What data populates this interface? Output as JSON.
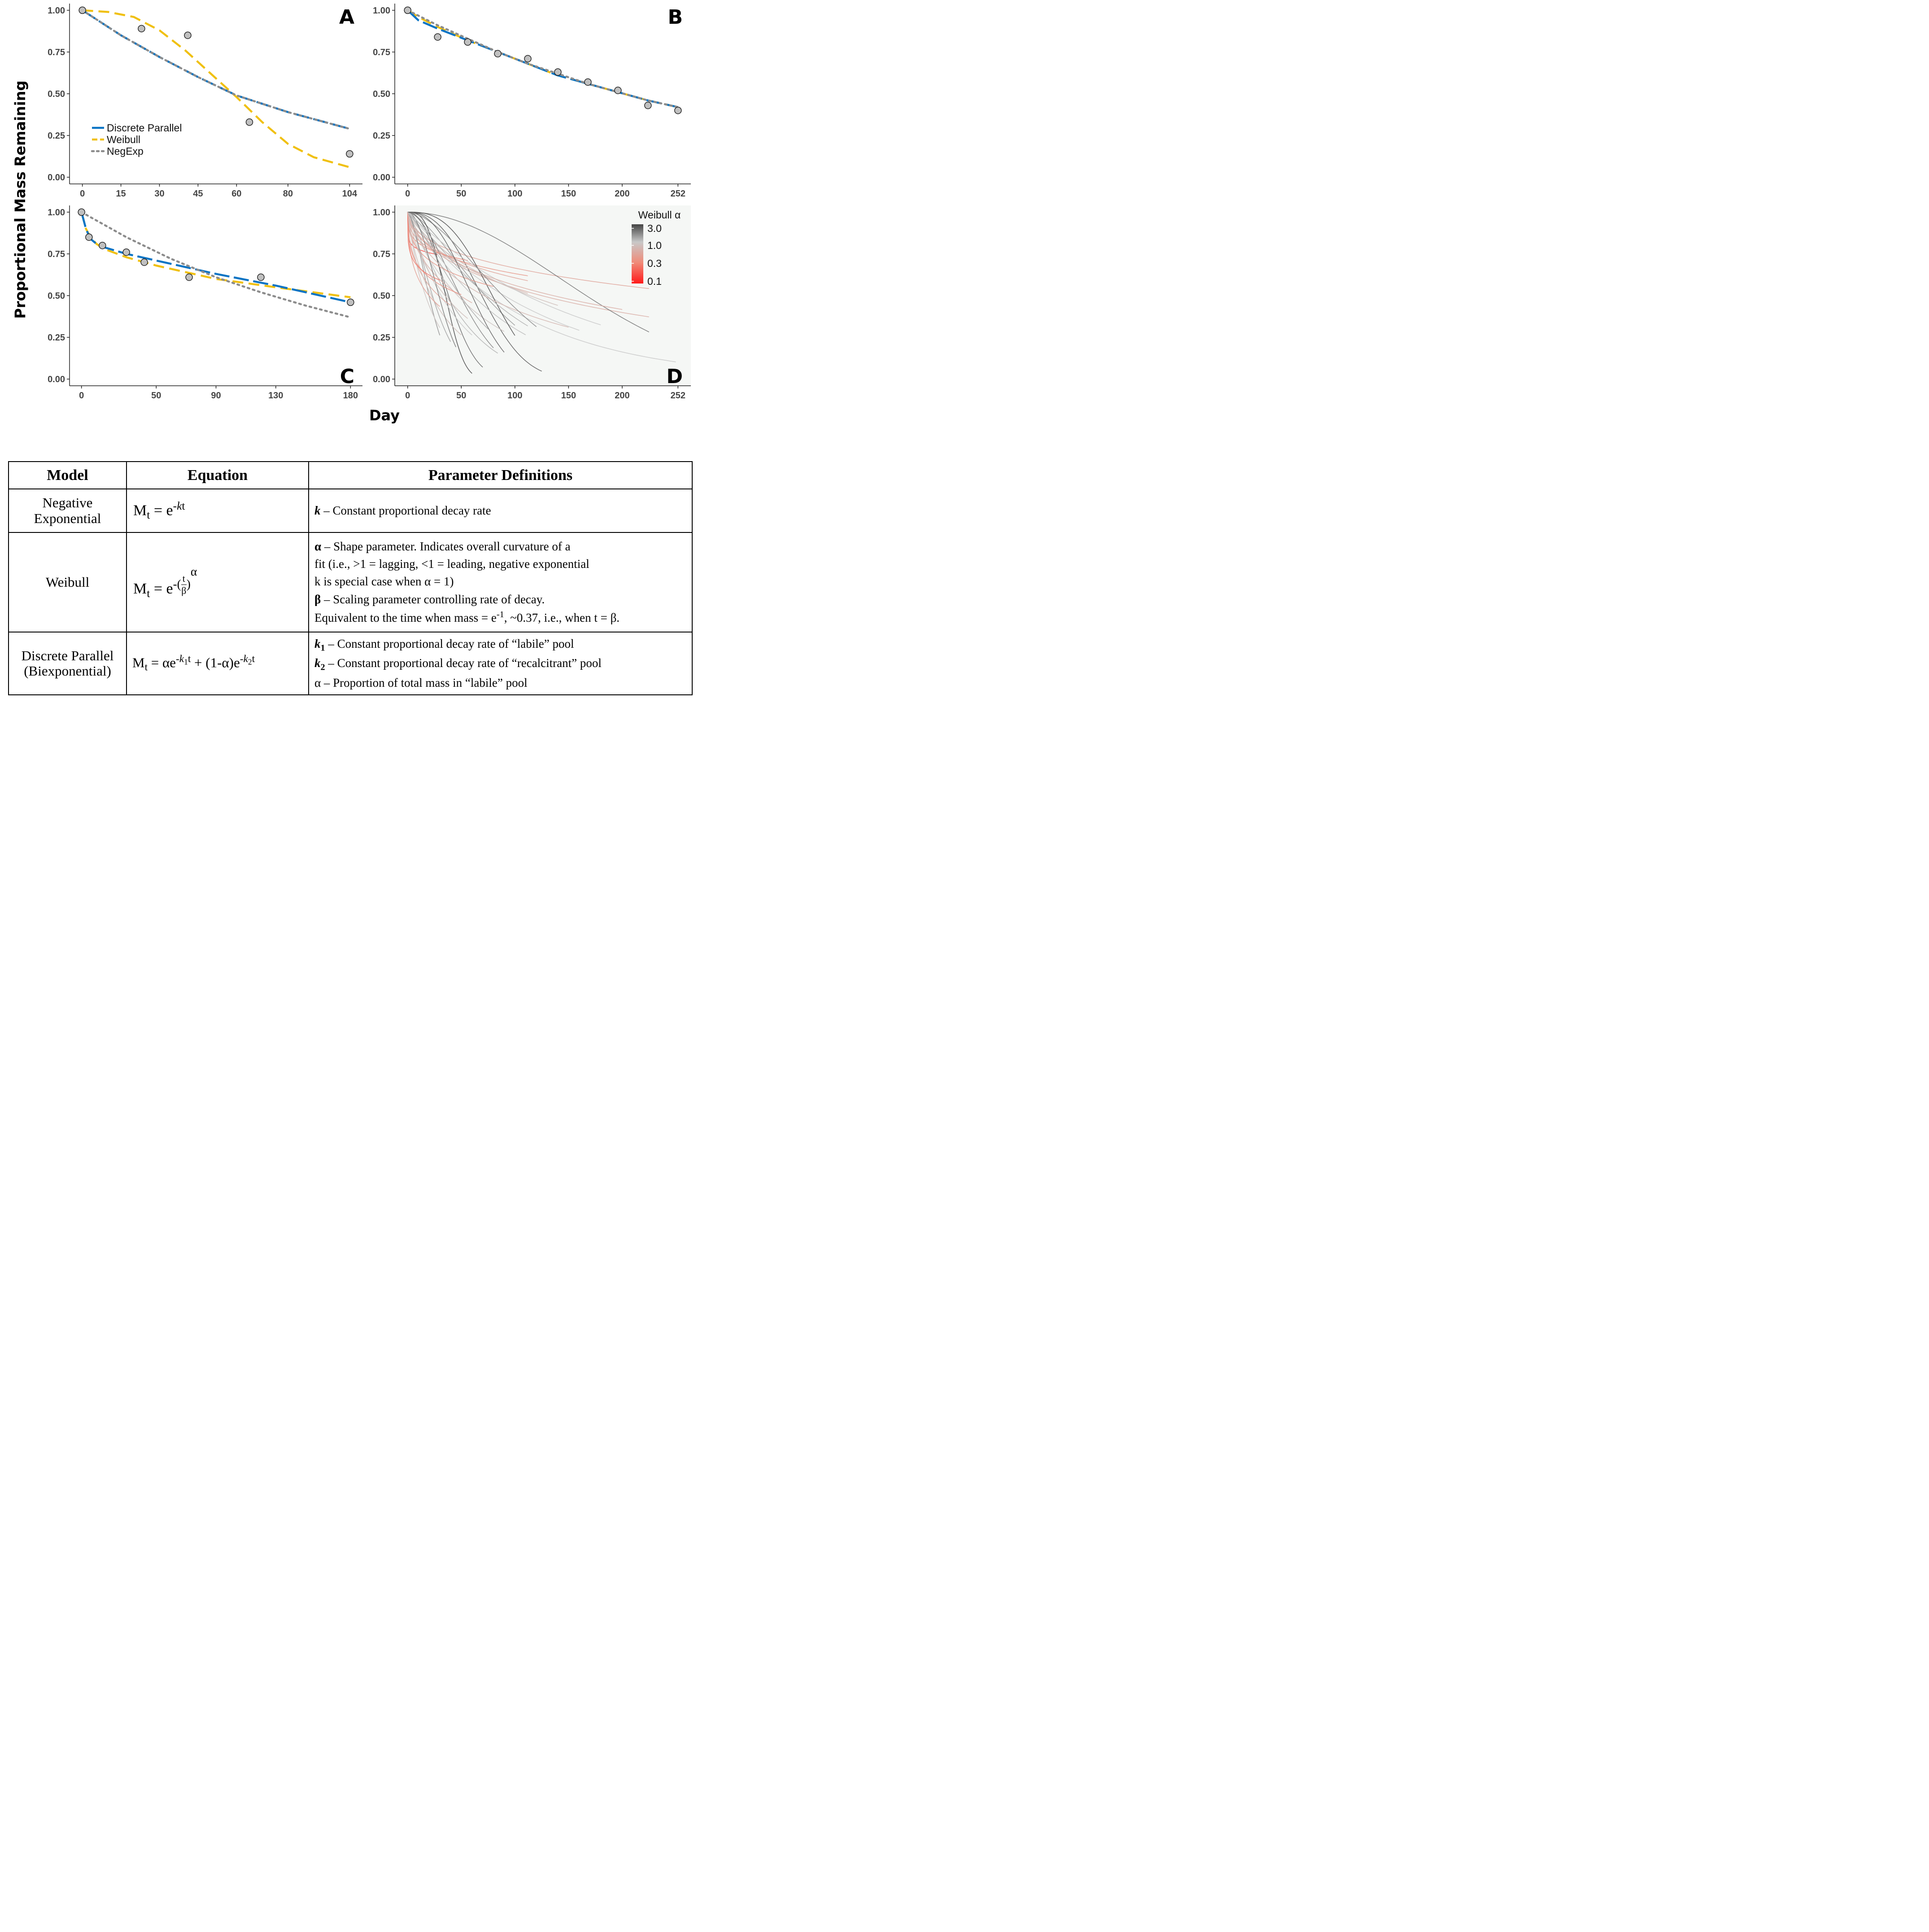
{
  "figure": {
    "y_axis_title": "Proportional Mass Remaining",
    "x_axis_title": "Day",
    "colors": {
      "discrete_parallel": "#0a74c4",
      "weibull": "#f0c010",
      "negexp": "#8c8c8c",
      "points_fill": "#c0c0c0",
      "panel_d_bg": "#f5f7f5"
    }
  },
  "chart_data": [
    {
      "type": "line",
      "panel": "A",
      "x_ticks": [
        0,
        15,
        30,
        45,
        60,
        80,
        104
      ],
      "y_ticks": [
        0,
        0.25,
        0.5,
        0.75,
        1
      ],
      "y_tick_labels": [
        "0.00",
        "0.25",
        "0.50",
        "0.75",
        "1.00"
      ],
      "xlim": [
        -5,
        109
      ],
      "ylim": [
        -0.04,
        1.04
      ],
      "points": {
        "x": [
          0,
          23,
          41,
          65,
          104
        ],
        "y": [
          1.0,
          0.89,
          0.85,
          0.33,
          0.14
        ]
      },
      "series": [
        {
          "name": "Discrete Parallel",
          "x": [
            0,
            15,
            30,
            45,
            60,
            80,
            104
          ],
          "y": [
            1.0,
            0.85,
            0.72,
            0.6,
            0.49,
            0.39,
            0.29
          ]
        },
        {
          "name": "Weibull",
          "x": [
            0,
            10,
            20,
            30,
            40,
            50,
            60,
            70,
            80,
            90,
            104
          ],
          "y": [
            1.0,
            0.99,
            0.96,
            0.88,
            0.76,
            0.62,
            0.48,
            0.33,
            0.2,
            0.12,
            0.06
          ]
        },
        {
          "name": "NegExp",
          "x": [
            0,
            15,
            30,
            45,
            60,
            80,
            104
          ],
          "y": [
            1.0,
            0.85,
            0.72,
            0.6,
            0.49,
            0.39,
            0.29
          ]
        }
      ],
      "legend": [
        "Discrete Parallel",
        "Weibull",
        "NegExp"
      ],
      "legend_position": "bottom-left"
    },
    {
      "type": "line",
      "panel": "B",
      "x_ticks": [
        0,
        50,
        100,
        150,
        200,
        252
      ],
      "y_ticks": [
        0,
        0.25,
        0.5,
        0.75,
        1
      ],
      "y_tick_labels": [
        "0.00",
        "0.25",
        "0.50",
        "0.75",
        "1.00"
      ],
      "xlim": [
        -12,
        264
      ],
      "ylim": [
        -0.04,
        1.04
      ],
      "points": {
        "x": [
          0,
          28,
          56,
          84,
          112,
          140,
          168,
          196,
          224,
          252
        ],
        "y": [
          1.0,
          0.84,
          0.81,
          0.74,
          0.71,
          0.63,
          0.57,
          0.52,
          0.43,
          0.4
        ]
      },
      "series": [
        {
          "name": "Discrete Parallel",
          "x": [
            0,
            10,
            28,
            56,
            84,
            112,
            140,
            168,
            196,
            224,
            252
          ],
          "y": [
            1.0,
            0.94,
            0.89,
            0.82,
            0.75,
            0.68,
            0.61,
            0.56,
            0.51,
            0.46,
            0.42
          ]
        },
        {
          "name": "Weibull",
          "x": [
            0,
            10,
            28,
            56,
            84,
            112,
            140,
            168,
            196,
            224,
            252
          ],
          "y": [
            1.0,
            0.96,
            0.9,
            0.82,
            0.75,
            0.68,
            0.61,
            0.56,
            0.51,
            0.46,
            0.42
          ]
        },
        {
          "name": "NegExp",
          "x": [
            0,
            28,
            56,
            84,
            112,
            140,
            168,
            196,
            224,
            252
          ],
          "y": [
            1.0,
            0.91,
            0.83,
            0.75,
            0.68,
            0.62,
            0.56,
            0.51,
            0.46,
            0.42
          ]
        }
      ]
    },
    {
      "type": "line",
      "panel": "C",
      "x_ticks": [
        0,
        50,
        90,
        130,
        180
      ],
      "y_ticks": [
        0,
        0.25,
        0.5,
        0.75,
        1
      ],
      "y_tick_labels": [
        "0.00",
        "0.25",
        "0.50",
        "0.75",
        "1.00"
      ],
      "xlim": [
        -8,
        188
      ],
      "ylim": [
        -0.04,
        1.04
      ],
      "points": {
        "x": [
          0,
          5,
          14,
          30,
          42,
          72,
          120,
          180
        ],
        "y": [
          1.0,
          0.85,
          0.8,
          0.76,
          0.7,
          0.61,
          0.61,
          0.46
        ]
      },
      "series": [
        {
          "name": "Discrete Parallel",
          "x": [
            0,
            3,
            6,
            10,
            15,
            30,
            50,
            90,
            130,
            180
          ],
          "y": [
            1.0,
            0.9,
            0.84,
            0.81,
            0.79,
            0.75,
            0.71,
            0.63,
            0.56,
            0.46
          ]
        },
        {
          "name": "Weibull",
          "x": [
            0,
            3,
            6,
            10,
            15,
            30,
            50,
            90,
            130,
            180
          ],
          "y": [
            1.0,
            0.9,
            0.85,
            0.81,
            0.78,
            0.73,
            0.68,
            0.6,
            0.55,
            0.49
          ]
        },
        {
          "name": "NegExp",
          "x": [
            0,
            30,
            60,
            90,
            120,
            150,
            180
          ],
          "y": [
            1.0,
            0.85,
            0.72,
            0.61,
            0.52,
            0.44,
            0.37
          ]
        }
      ]
    },
    {
      "type": "line",
      "panel": "D",
      "x_ticks": [
        0,
        50,
        100,
        150,
        200,
        252
      ],
      "y_ticks": [
        0,
        0.25,
        0.5,
        0.75,
        1
      ],
      "y_tick_labels": [
        "0.00",
        "0.25",
        "0.50",
        "0.75",
        "1.00"
      ],
      "xlim": [
        -12,
        264
      ],
      "ylim": [
        -0.04,
        1.04
      ],
      "colorbar": {
        "title": "Weibull α",
        "labels": [
          "3.0",
          "1.0",
          "0.3",
          "0.1"
        ],
        "values": [
          3.0,
          1.0,
          0.3,
          0.1
        ],
        "colors": [
          "#444444",
          "#c8c8c8",
          "#f08a78",
          "#ff1a1a"
        ],
        "position": "top-right"
      },
      "curves": [
        {
          "alpha": 1.0,
          "beta": 110,
          "tmax": 250
        },
        {
          "alpha": 0.5,
          "beta": 600,
          "tmax": 225
        },
        {
          "alpha": 0.6,
          "beta": 230,
          "tmax": 225
        },
        {
          "alpha": 2.0,
          "beta": 200,
          "tmax": 225
        },
        {
          "alpha": 1.5,
          "beta": 92,
          "tmax": 100
        },
        {
          "alpha": 2.5,
          "beta": 80,
          "tmax": 125
        },
        {
          "alpha": 1.0,
          "beta": 130,
          "tmax": 160
        },
        {
          "alpha": 0.4,
          "beta": 700,
          "tmax": 112
        },
        {
          "alpha": 0.5,
          "beta": 400,
          "tmax": 112
        },
        {
          "alpha": 0.7,
          "beta": 200,
          "tmax": 112
        },
        {
          "alpha": 0.8,
          "beta": 180,
          "tmax": 140
        },
        {
          "alpha": 0.3,
          "beta": 2000,
          "tmax": 56
        },
        {
          "alpha": 0.15,
          "beta": 100000.0,
          "tmax": 28
        },
        {
          "alpha": 1.2,
          "beta": 50,
          "tmax": 84
        },
        {
          "alpha": 1.8,
          "beta": 60,
          "tmax": 80
        },
        {
          "alpha": 2.2,
          "beta": 45,
          "tmax": 70
        },
        {
          "alpha": 3.0,
          "beta": 40,
          "tmax": 60
        },
        {
          "alpha": 1.0,
          "beta": 45,
          "tmax": 60
        },
        {
          "alpha": 0.9,
          "beta": 70,
          "tmax": 90
        },
        {
          "alpha": 1.4,
          "beta": 30,
          "tmax": 40
        },
        {
          "alpha": 1.6,
          "beta": 25,
          "tmax": 30
        },
        {
          "alpha": 0.6,
          "beta": 90,
          "tmax": 60
        },
        {
          "alpha": 0.5,
          "beta": 60,
          "tmax": 40
        },
        {
          "alpha": 0.8,
          "beta": 35,
          "tmax": 50
        },
        {
          "alpha": 1.1,
          "beta": 85,
          "tmax": 110
        },
        {
          "alpha": 2.8,
          "beta": 90,
          "tmax": 100
        },
        {
          "alpha": 0.7,
          "beta": 120,
          "tmax": 150
        },
        {
          "alpha": 0.4,
          "beta": 300,
          "tmax": 80
        },
        {
          "alpha": 0.35,
          "beta": 150,
          "tmax": 50
        },
        {
          "alpha": 1.3,
          "beta": 65,
          "tmax": 75
        },
        {
          "alpha": 2.0,
          "beta": 35,
          "tmax": 45
        },
        {
          "alpha": 0.9,
          "beta": 25,
          "tmax": 30
        },
        {
          "alpha": 1.0,
          "beta": 160,
          "tmax": 180
        },
        {
          "alpha": 0.6,
          "beta": 250,
          "tmax": 200
        },
        {
          "alpha": 1.7,
          "beta": 110,
          "tmax": 120
        },
        {
          "alpha": 2.4,
          "beta": 70,
          "tmax": 90
        },
        {
          "alpha": 0.45,
          "beta": 45,
          "tmax": 30
        },
        {
          "alpha": 0.25,
          "beta": 400,
          "tmax": 30
        },
        {
          "alpha": 1.2,
          "beta": 100,
          "tmax": 112
        },
        {
          "alpha": 0.8,
          "beta": 55,
          "tmax": 56
        }
      ]
    }
  ],
  "table": {
    "headers": [
      "Model",
      "Equation",
      "Parameter Definitions"
    ],
    "rows": [
      {
        "model_line1": "Negative",
        "model_line2": "Exponential",
        "eq": {
          "M": "M",
          "sub_t": "t",
          "eq_sign": " = e",
          "exp": "-",
          "k": "k",
          "t": "t"
        },
        "defs": [
          {
            "sym": "k",
            "text": " – Constant proportional decay rate"
          }
        ]
      },
      {
        "model": "Weibull",
        "eq": {
          "M": "M",
          "sub_t": "t",
          "eq_sign": " = e",
          "minus": "-(",
          "num": "t",
          "den": "β",
          "close": ")",
          "alpha": "α"
        },
        "defs": [
          {
            "sym": "α",
            "text": " – Shape parameter. Indicates overall curvature of a"
          },
          {
            "sym": "",
            "text": "fit (i.e., >1 = lagging, <1 = leading, negative exponential"
          },
          {
            "sym": "",
            "text": "k is special case when α = 1)"
          },
          {
            "sym": "β",
            "text": " – Scaling parameter controlling rate of decay."
          },
          {
            "sym": "",
            "text": "Equivalent to the time when mass = e",
            "sup": "-1",
            "text2": ", ~0.37, i.e., when t = β."
          }
        ]
      },
      {
        "model_line1": "Discrete Parallel",
        "model_line2": "(Biexponential)",
        "eq": {
          "M": "M",
          "sub_t": "t",
          "part1": " = αe",
          "exp1": "-",
          "k1": "k",
          "k1sub": "1",
          "t1": "t",
          "part2": " + (1-α)e",
          "exp2": "-",
          "k2": "k",
          "k2sub": "2",
          "t2": "t"
        },
        "defs": [
          {
            "sym": "k",
            "symsub": "1",
            "text": " – Constant proportional decay rate of “labile” pool"
          },
          {
            "sym": "k",
            "symsub": "2",
            "text": " – Constant proportional decay rate of “recalcitrant” pool"
          },
          {
            "sym": "",
            "text": "α – Proportion of total mass in “labile” pool"
          }
        ]
      }
    ]
  }
}
